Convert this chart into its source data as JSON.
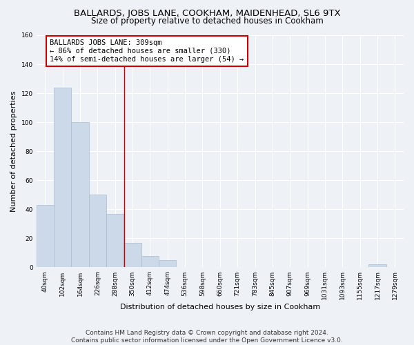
{
  "title": "BALLARDS, JOBS LANE, COOKHAM, MAIDENHEAD, SL6 9TX",
  "subtitle": "Size of property relative to detached houses in Cookham",
  "xlabel": "Distribution of detached houses by size in Cookham",
  "ylabel": "Number of detached properties",
  "bin_labels": [
    "40sqm",
    "102sqm",
    "164sqm",
    "226sqm",
    "288sqm",
    "350sqm",
    "412sqm",
    "474sqm",
    "536sqm",
    "598sqm",
    "660sqm",
    "721sqm",
    "783sqm",
    "845sqm",
    "907sqm",
    "969sqm",
    "1031sqm",
    "1093sqm",
    "1155sqm",
    "1217sqm",
    "1279sqm"
  ],
  "bar_heights": [
    43,
    124,
    100,
    50,
    37,
    17,
    8,
    5,
    0,
    0,
    0,
    0,
    0,
    0,
    0,
    0,
    0,
    0,
    0,
    2,
    0
  ],
  "bar_color": "#ccd9e8",
  "bar_edge_color": "#aabcce",
  "vline_x": 4.52,
  "vline_color": "#cc0000",
  "annotation_text": "BALLARDS JOBS LANE: 309sqm\n← 86% of detached houses are smaller (330)\n14% of semi-detached houses are larger (54) →",
  "annotation_box_color": "#ffffff",
  "annotation_box_edge": "#cc0000",
  "ylim": [
    0,
    160
  ],
  "yticks": [
    0,
    20,
    40,
    60,
    80,
    100,
    120,
    140,
    160
  ],
  "footnote": "Contains HM Land Registry data © Crown copyright and database right 2024.\nContains public sector information licensed under the Open Government Licence v3.0.",
  "bg_color": "#eef2f7",
  "grid_color": "#ffffff",
  "title_fontsize": 9.5,
  "subtitle_fontsize": 8.5,
  "label_fontsize": 8,
  "tick_fontsize": 6.5,
  "footnote_fontsize": 6.5,
  "ann_fontsize": 7.5
}
